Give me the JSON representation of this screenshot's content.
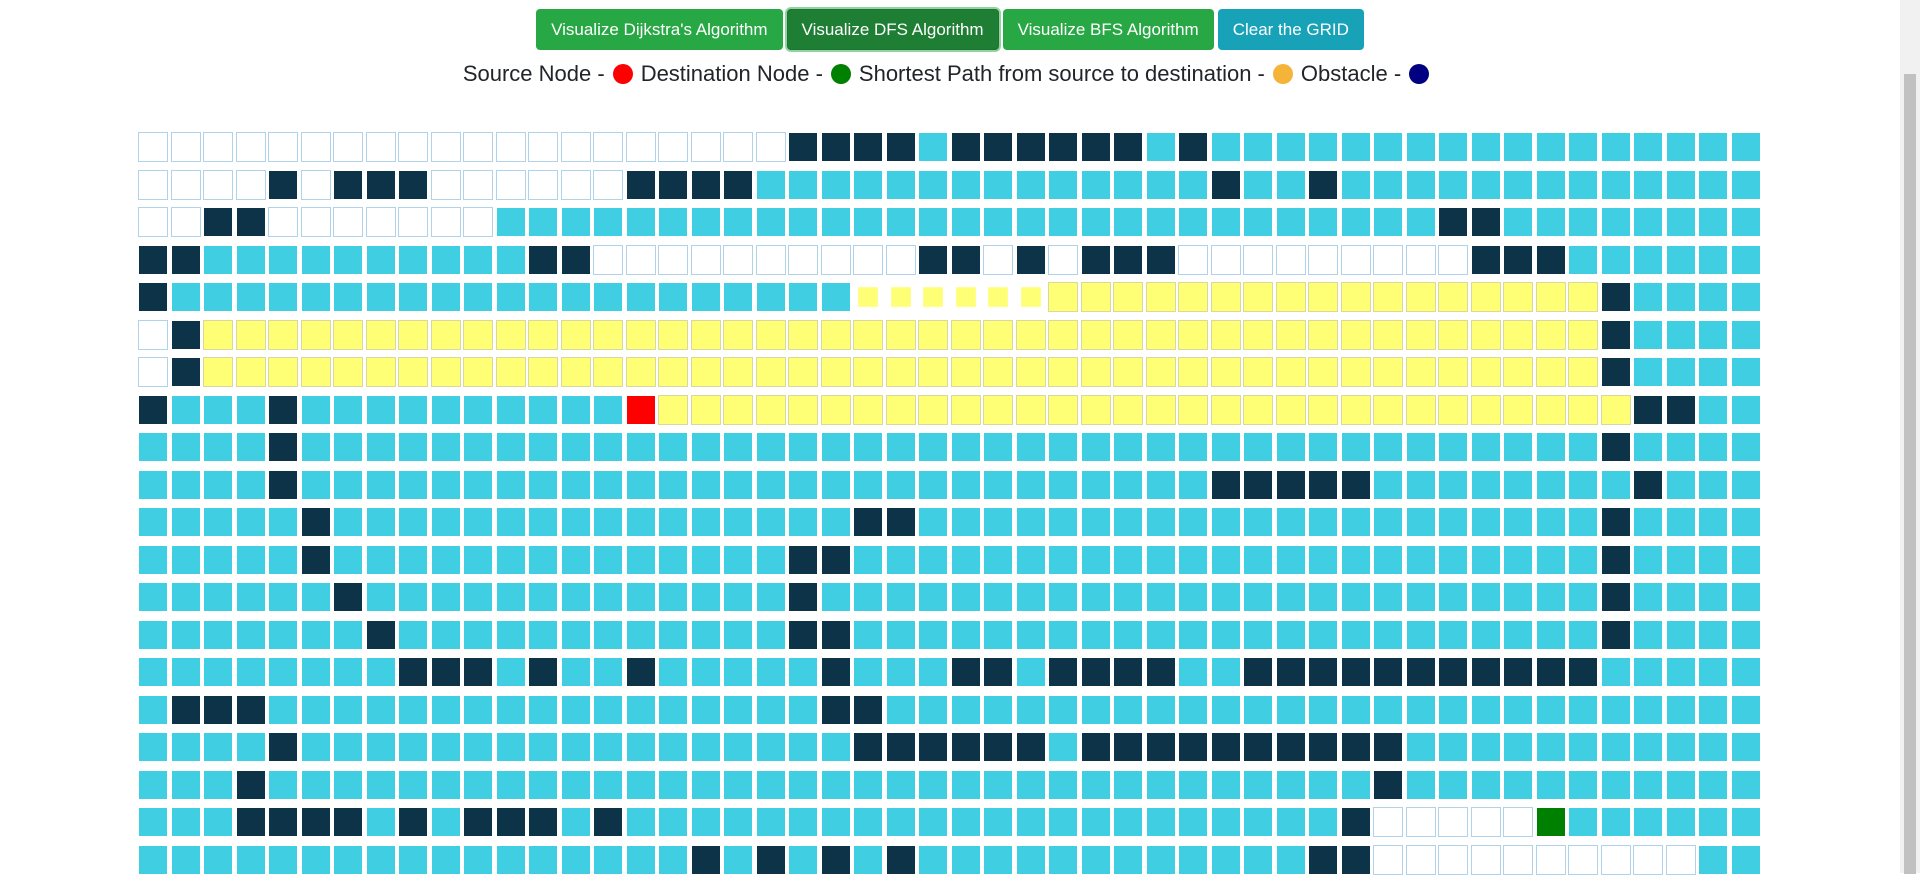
{
  "toolbar": {
    "buttons": [
      {
        "label": "Visualize Dijkstra's Algorithm"
      },
      {
        "label": "Visualize DFS Algorithm"
      },
      {
        "label": "Visualize BFS Algorithm"
      },
      {
        "label": "Clear the GRID"
      }
    ]
  },
  "legend": {
    "source_label": "Source Node -",
    "destination_label": "Destination Node -",
    "path_label": "Shortest Path from source to destination -",
    "obstacle_label": "Obstacle -",
    "colors": {
      "source": "#ff0000",
      "destination": "#008000",
      "path": "#f4b43a",
      "obstacle": "#000080"
    }
  },
  "grid": {
    "legend": {
      "u": "unvisited",
      "v": "visited",
      "w": "wall",
      "p": "path",
      "q": "path-animating",
      "s": "source",
      "d": "destination"
    },
    "colors": {
      "unvisited": "#ffffff",
      "visited": "#40cee3",
      "wall": "#0d3349",
      "path": "#ffff75",
      "source": "#ff0000",
      "destination": "#008000"
    },
    "rows": [
      "uuuuuuuuuuuuuuuuuuuuwwwwvwwwwwwvwvvvvvvvvvvvvvvvvvvv",
      "uuuuwuwwwuuuuuuwwwwvvvvvvvvvvvvvvwvvwvvvvvvvvvvvvvvv",
      "uuwwuuuuuuuvvvvvvvvvvvvvvvvvvvvvvvvvvvvvwwvvvvvvvvvv",
      "wwvvvvvvvvvvwwuuuuuuuuuuwwuwuwwwuuuuuuuuuwwwvvvvvvvv",
      "wvvvvvvvvvvvvvvvvvvvvvqqqqqqpppppppppppppppppwvvvvvv",
      "uwpppppppppppppppppppppppppppppppppppppppppppwvvvvvv",
      "uwpppppppppppppppppppppppppppppppppppppppppppwvvvvvv",
      "wvvvwvvvvvvvvvvsppppppppppppppppppppppppppppppwwvvvvv",
      "vvvvwvvvvvvvvvvvvvvvvvvvvvvvvvvvvvvvvvvvvvvvvwvvvvvv",
      "vvvvwvvvvvvvvvvvvvvvvvvvvvvvvvvvvwwwwwvvvvvvvvwvvvvvv",
      "vvvvvwvvvvvvvvvvvvvvvvwwvvvvvvvvvvvvvvvvvvvvvwvvvvvv",
      "vvvvvwvvvvvvvvvvvvvvwwvvvvvvvvvvvvvvvvvvvvvvvwvvvvvv",
      "vvvvvvwvvvvvvvvvvvvvwvvvvvvvvvvvvvvvvvvvvvvvvwvvvvvv",
      "vvvvvvvwvvvvvvvvvvvvwwvvvvvvvvvvvvvvvvvvvvvvvwvvvvvv",
      "vvvvvvvvwwwvwvvwvvvvvwvvvwwvwwwwvvwwwwwwwwwwwvvvvvv",
      "vwwwvvvvvvvvvvvvvvvvvwwvvvvvvvvvvvvvvvvvvvvvvvvvvvv",
      "vvvvwvvvvvvvvvvvvvvvvvwwwwwwvwwwwwwwwwwvvvvvvvvvvvv",
      "vvvwvvvvvvvvvvvvvvvvvvvvvvvvvvvvvvvvvvwvvvvvvvvvvvv",
      "vvvwwwwvwvwwwvwvvvvvvvvvvvvvvvvvvvvvvwuuuuudvvvvvv",
      "vvvvvvvvvvvvvvvvvwvwvwvwvvvvvvvvvvvvwwuuuuuuuuuu"
    ]
  }
}
